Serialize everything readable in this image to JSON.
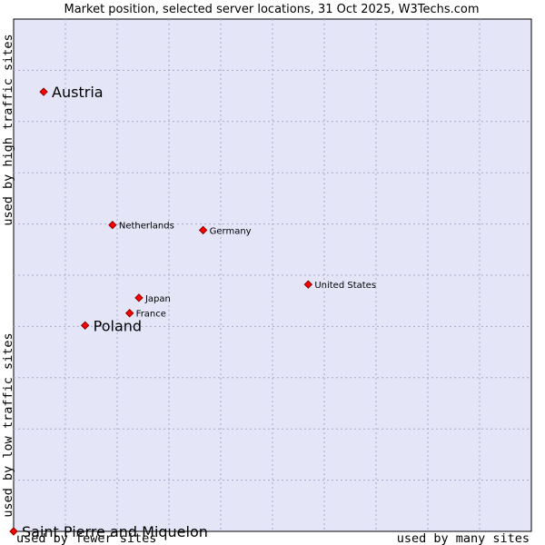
{
  "chart_data": {
    "type": "scatter",
    "title": "Market position, selected server locations, 31 Oct 2025, W3Techs.com",
    "xlabel_left": "used by fewer sites",
    "xlabel_right": "used by many sites",
    "ylabel_bottom": "used by low traffic sites",
    "ylabel_top": "used by high traffic sites",
    "xlim": [
      0,
      100
    ],
    "ylim": [
      0,
      100
    ],
    "grid": true,
    "points": [
      {
        "name": "Austria",
        "x": 5.8,
        "y": 85.8,
        "highlight": true
      },
      {
        "name": "Netherlands",
        "x": 19.1,
        "y": 59.8,
        "highlight": false
      },
      {
        "name": "Germany",
        "x": 36.6,
        "y": 58.8,
        "highlight": false
      },
      {
        "name": "United States",
        "x": 56.9,
        "y": 48.2,
        "highlight": false
      },
      {
        "name": "Japan",
        "x": 24.2,
        "y": 45.6,
        "highlight": false
      },
      {
        "name": "France",
        "x": 22.4,
        "y": 42.6,
        "highlight": false
      },
      {
        "name": "Poland",
        "x": 13.8,
        "y": 40.2,
        "highlight": true
      },
      {
        "name": "Saint Pierre and Miquelon",
        "x": 0.0,
        "y": 0.0,
        "highlight": true
      }
    ]
  }
}
